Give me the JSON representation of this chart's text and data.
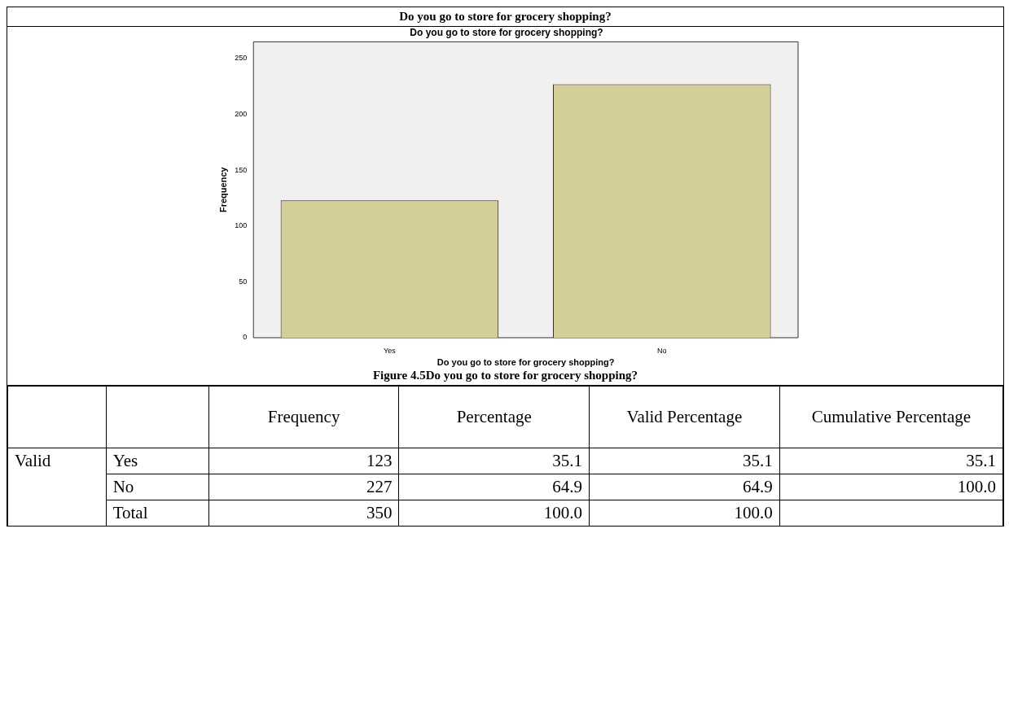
{
  "chart_data": [
    {
      "type": "bar",
      "title": "Do you go to store for grocery shopping?",
      "xlabel": "Do you go to store for grocery shopping?",
      "ylabel": "Frequency",
      "categories": [
        "Yes",
        "No"
      ],
      "values": [
        123,
        227
      ],
      "color": "#d3ce98",
      "ylim": [
        0,
        265
      ],
      "yticks": [
        0,
        50,
        100,
        150,
        200,
        250
      ],
      "grid": false,
      "legend": false,
      "annotations": [
        "Do you go to store for grocery shopping?",
        "Figure 4.5Do you go to store for grocery shopping?"
      ]
    },
    {
      "type": "other",
      "annotations": [
        "Frequency",
        "Percentage",
        "Valid Percentage",
        "Cumulative Percentage",
        "Valid",
        "Yes",
        "123",
        "35.1",
        "35.1",
        "35.1",
        "No",
        "227",
        "64.9",
        "64.9",
        "100.0",
        "Total",
        "350",
        "100.0",
        "100.0"
      ]
    }
  ]
}
